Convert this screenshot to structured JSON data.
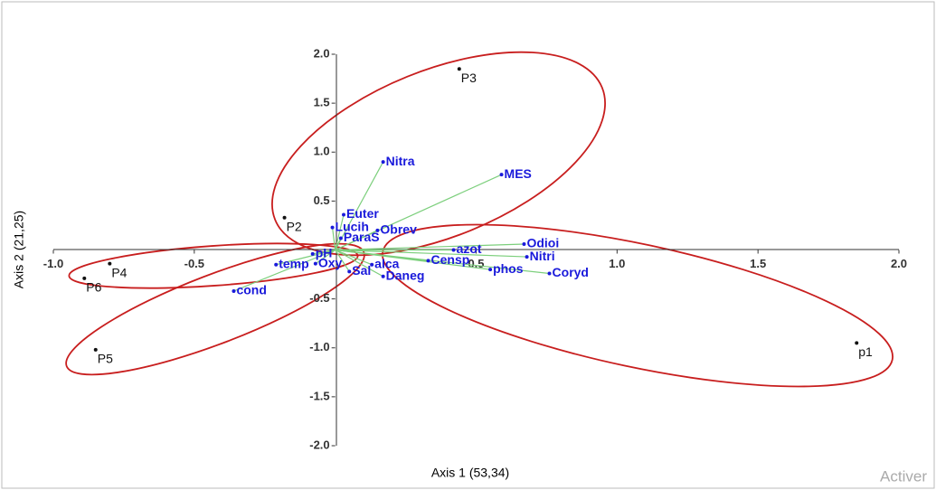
{
  "chart_data": {
    "type": "scatter",
    "x_label": "Axis 1 (53,34)",
    "y_label": "Axis 2 (21,25)",
    "xlim": [
      -1,
      2
    ],
    "ylim": [
      -2,
      2
    ],
    "xticks": [
      {
        "value": -1,
        "label": "-1.0"
      },
      -0.5,
      0.5,
      {
        "value": 1,
        "label": "1.0"
      },
      1.5,
      {
        "value": 2,
        "label": "2.0"
      }
    ],
    "yticks": [
      {
        "value": 2,
        "label": "2.0"
      },
      1.5,
      {
        "value": 1,
        "label": "1.0"
      },
      0.5,
      -0.5,
      {
        "value": -1,
        "label": "-1.0"
      },
      -1.5,
      {
        "value": -2,
        "label": "-2.0"
      }
    ],
    "point_color": "#111111",
    "vector_color": "#1a1adb",
    "vector_line_color": "#7ccf7c",
    "ellipse_color": "#c81e1e",
    "points": [
      {
        "label": "P3",
        "x": 0.44,
        "y": 1.85
      },
      {
        "label": "P2",
        "x": -0.18,
        "y": 0.33
      },
      {
        "label": "P4",
        "x": -0.8,
        "y": -0.14
      },
      {
        "label": "P6",
        "x": -0.89,
        "y": -0.29
      },
      {
        "label": "P5",
        "x": -0.85,
        "y": -1.02
      },
      {
        "label": "p1",
        "x": 1.85,
        "y": -0.95
      }
    ],
    "vectors": [
      {
        "label": "Nitra",
        "x": 0.17,
        "y": 0.9
      },
      {
        "label": "MES",
        "x": 0.59,
        "y": 0.77
      },
      {
        "label": "Euter",
        "x": 0.03,
        "y": 0.36
      },
      {
        "label": "Obrev",
        "x": 0.15,
        "y": 0.2
      },
      {
        "label": "Lucih",
        "x": -0.01,
        "y": 0.23
      },
      {
        "label": "ParaS",
        "x": 0.02,
        "y": 0.12
      },
      {
        "label": "Odioi",
        "x": 0.67,
        "y": 0.06
      },
      {
        "label": "azot",
        "x": 0.42,
        "y": 0.0
      },
      {
        "label": "Nitri",
        "x": 0.68,
        "y": -0.07
      },
      {
        "label": "pH",
        "x": -0.08,
        "y": -0.04
      },
      {
        "label": "temp",
        "x": -0.21,
        "y": -0.15
      },
      {
        "label": "Oxy",
        "x": -0.07,
        "y": -0.14
      },
      {
        "label": "alca",
        "x": 0.13,
        "y": -0.15
      },
      {
        "label": "Censp",
        "x": 0.33,
        "y": -0.11
      },
      {
        "label": "phos",
        "x": 0.55,
        "y": -0.2
      },
      {
        "label": "Coryd",
        "x": 0.76,
        "y": -0.24
      },
      {
        "label": "Sal",
        "x": 0.05,
        "y": -0.22
      },
      {
        "label": "Daneg",
        "x": 0.17,
        "y": -0.27
      },
      {
        "label": "cond",
        "x": -0.36,
        "y": -0.42
      }
    ],
    "watermark": "Activer"
  }
}
